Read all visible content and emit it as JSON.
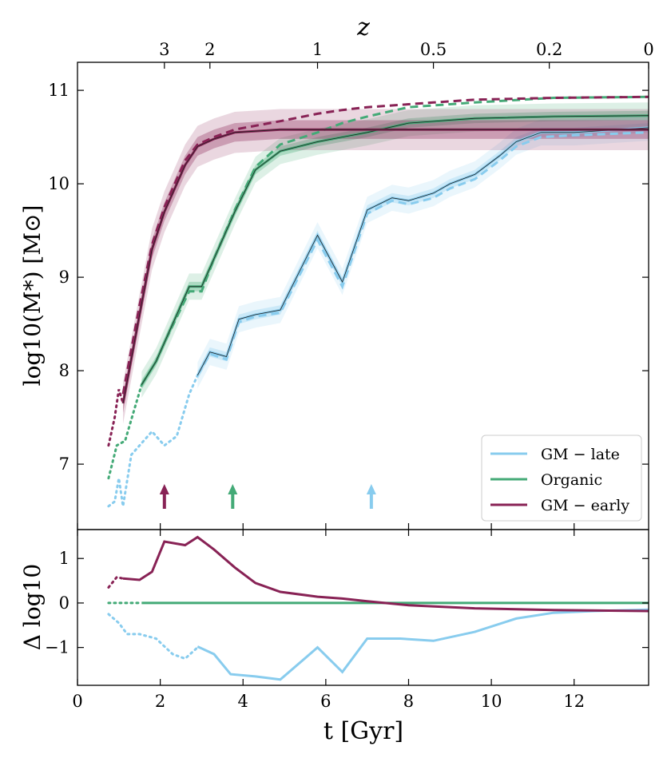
{
  "chart_data": {
    "type": "line",
    "xlabel": "t [Gyr]",
    "top_xlabel": "z",
    "ylabel_top": "log10(M*) [M⊙]",
    "ylabel_bottom": "Δ log10",
    "xlim": [
      0,
      13.8
    ],
    "ylim_top": [
      6.3,
      11.3
    ],
    "ylim_bottom": [
      -1.85,
      1.65
    ],
    "x_ticks": [
      0,
      2,
      4,
      6,
      8,
      10,
      12
    ],
    "y_ticks_top": [
      7,
      8,
      9,
      10,
      11
    ],
    "y_ticks_bottom": [
      -1,
      0,
      1
    ],
    "z_ticks": [
      {
        "label": "3",
        "t": 2.1
      },
      {
        "label": "2",
        "t": 3.2
      },
      {
        "label": "1",
        "t": 5.8
      },
      {
        "label": "0.5",
        "t": 8.6
      },
      {
        "label": "0.2",
        "t": 11.4
      },
      {
        "label": "0",
        "t": 13.8
      }
    ],
    "legend": {
      "position": "lower-right",
      "entries": [
        {
          "key": "late",
          "label": "GM − late"
        },
        {
          "key": "organic",
          "label": "Organic"
        },
        {
          "key": "early",
          "label": "GM − early"
        }
      ]
    },
    "colors": {
      "late": "#88ccee",
      "organic": "#44aa77",
      "early": "#882255"
    },
    "series": [
      {
        "key": "late",
        "name": "GM − late",
        "dotted": [
          [
            0.75,
            6.55
          ],
          [
            0.9,
            6.6
          ],
          [
            1.0,
            6.85
          ],
          [
            1.1,
            6.55
          ],
          [
            1.3,
            7.1
          ],
          [
            1.5,
            7.2
          ],
          [
            1.8,
            7.35
          ],
          [
            2.1,
            7.2
          ],
          [
            2.4,
            7.3
          ],
          [
            2.7,
            7.75
          ],
          [
            2.9,
            7.95
          ]
        ],
        "solid": [
          [
            2.9,
            7.95
          ],
          [
            3.2,
            8.2
          ],
          [
            3.6,
            8.15
          ],
          [
            3.9,
            8.55
          ],
          [
            4.3,
            8.6
          ],
          [
            4.9,
            8.65
          ],
          [
            5.8,
            9.45
          ],
          [
            6.4,
            8.95
          ],
          [
            7.0,
            9.72
          ],
          [
            7.6,
            9.85
          ],
          [
            8.0,
            9.82
          ],
          [
            8.6,
            9.9
          ],
          [
            9.0,
            10.0
          ],
          [
            9.6,
            10.1
          ],
          [
            10.2,
            10.3
          ],
          [
            10.6,
            10.45
          ],
          [
            11.2,
            10.55
          ],
          [
            12.0,
            10.55
          ],
          [
            13.8,
            10.6
          ]
        ],
        "dashed": [
          [
            2.9,
            7.95
          ],
          [
            3.2,
            8.18
          ],
          [
            3.6,
            8.12
          ],
          [
            3.9,
            8.52
          ],
          [
            4.3,
            8.58
          ],
          [
            4.9,
            8.62
          ],
          [
            5.8,
            9.4
          ],
          [
            6.4,
            8.9
          ],
          [
            7.0,
            9.68
          ],
          [
            7.6,
            9.82
          ],
          [
            8.0,
            9.78
          ],
          [
            8.6,
            9.85
          ],
          [
            9.0,
            9.95
          ],
          [
            9.6,
            10.05
          ],
          [
            10.2,
            10.25
          ],
          [
            10.6,
            10.4
          ],
          [
            11.2,
            10.5
          ],
          [
            12.0,
            10.52
          ],
          [
            13.8,
            10.55
          ]
        ],
        "delta_dotted": [
          [
            0.75,
            -0.25
          ],
          [
            1.0,
            -0.45
          ],
          [
            1.2,
            -0.7
          ],
          [
            1.5,
            -0.7
          ],
          [
            1.9,
            -0.8
          ],
          [
            2.3,
            -1.15
          ],
          [
            2.6,
            -1.25
          ],
          [
            2.9,
            -1.0
          ]
        ],
        "delta": [
          [
            2.9,
            -0.98
          ],
          [
            3.3,
            -1.15
          ],
          [
            3.7,
            -1.6
          ],
          [
            4.3,
            -1.65
          ],
          [
            4.9,
            -1.72
          ],
          [
            5.8,
            -1.0
          ],
          [
            6.4,
            -1.55
          ],
          [
            7.0,
            -0.8
          ],
          [
            7.8,
            -0.8
          ],
          [
            8.6,
            -0.85
          ],
          [
            9.6,
            -0.65
          ],
          [
            10.6,
            -0.35
          ],
          [
            11.5,
            -0.22
          ],
          [
            12.5,
            -0.18
          ],
          [
            13.8,
            -0.15
          ]
        ]
      },
      {
        "key": "organic",
        "name": "Organic",
        "dotted": [
          [
            0.75,
            6.85
          ],
          [
            0.95,
            7.2
          ],
          [
            1.15,
            7.25
          ],
          [
            1.35,
            7.55
          ],
          [
            1.55,
            7.85
          ]
        ],
        "solid": [
          [
            1.55,
            7.85
          ],
          [
            1.9,
            8.1
          ],
          [
            2.1,
            8.3
          ],
          [
            2.7,
            8.9
          ],
          [
            3.0,
            8.9
          ],
          [
            3.3,
            9.2
          ],
          [
            3.8,
            9.7
          ],
          [
            4.3,
            10.15
          ],
          [
            4.9,
            10.35
          ],
          [
            5.8,
            10.45
          ],
          [
            6.4,
            10.5
          ],
          [
            7.0,
            10.55
          ],
          [
            8.0,
            10.65
          ],
          [
            9.6,
            10.7
          ],
          [
            11.5,
            10.72
          ],
          [
            13.8,
            10.73
          ]
        ],
        "dashed": [
          [
            1.55,
            7.85
          ],
          [
            1.9,
            8.1
          ],
          [
            2.1,
            8.3
          ],
          [
            2.7,
            8.85
          ],
          [
            3.0,
            8.85
          ],
          [
            3.3,
            9.2
          ],
          [
            3.8,
            9.72
          ],
          [
            4.3,
            10.18
          ],
          [
            4.9,
            10.42
          ],
          [
            5.8,
            10.55
          ],
          [
            6.4,
            10.65
          ],
          [
            7.0,
            10.72
          ],
          [
            8.0,
            10.82
          ],
          [
            9.6,
            10.87
          ],
          [
            11.5,
            10.92
          ],
          [
            13.8,
            10.93
          ]
        ],
        "delta_dotted": [
          [
            0.75,
            0.0
          ],
          [
            1.55,
            0.0
          ]
        ],
        "delta": [
          [
            1.55,
            0.0
          ],
          [
            13.8,
            0.0
          ]
        ]
      },
      {
        "key": "early",
        "name": "GM − early",
        "dotted": [
          [
            0.75,
            7.2
          ],
          [
            0.9,
            7.5
          ],
          [
            1.0,
            7.8
          ],
          [
            1.1,
            7.65
          ]
        ],
        "solid": [
          [
            1.1,
            7.65
          ],
          [
            1.5,
            8.6
          ],
          [
            1.8,
            9.3
          ],
          [
            2.1,
            9.7
          ],
          [
            2.6,
            10.2
          ],
          [
            2.9,
            10.4
          ],
          [
            3.3,
            10.48
          ],
          [
            3.8,
            10.55
          ],
          [
            4.9,
            10.58
          ],
          [
            7.0,
            10.58
          ],
          [
            13.8,
            10.58
          ]
        ],
        "dashed": [
          [
            1.1,
            7.75
          ],
          [
            1.5,
            8.7
          ],
          [
            1.8,
            9.35
          ],
          [
            2.1,
            9.75
          ],
          [
            2.6,
            10.25
          ],
          [
            2.9,
            10.42
          ],
          [
            3.3,
            10.5
          ],
          [
            3.8,
            10.58
          ],
          [
            4.9,
            10.67
          ],
          [
            5.8,
            10.75
          ],
          [
            6.4,
            10.79
          ],
          [
            7.0,
            10.82
          ],
          [
            8.6,
            10.87
          ],
          [
            9.6,
            10.9
          ],
          [
            11.5,
            10.92
          ],
          [
            13.8,
            10.93
          ]
        ],
        "delta_dotted": [
          [
            0.75,
            0.35
          ],
          [
            0.95,
            0.58
          ],
          [
            1.1,
            0.55
          ]
        ],
        "delta": [
          [
            1.1,
            0.55
          ],
          [
            1.5,
            0.52
          ],
          [
            1.8,
            0.7
          ],
          [
            2.1,
            1.38
          ],
          [
            2.6,
            1.3
          ],
          [
            2.9,
            1.48
          ],
          [
            3.3,
            1.2
          ],
          [
            3.8,
            0.8
          ],
          [
            4.3,
            0.45
          ],
          [
            4.9,
            0.25
          ],
          [
            5.8,
            0.14
          ],
          [
            6.4,
            0.1
          ],
          [
            7.0,
            0.04
          ],
          [
            8.0,
            -0.05
          ],
          [
            9.6,
            -0.12
          ],
          [
            11.5,
            -0.16
          ],
          [
            13.8,
            -0.18
          ]
        ]
      }
    ],
    "arrows": [
      {
        "key": "early",
        "t": 2.1
      },
      {
        "key": "organic",
        "t": 3.75
      },
      {
        "key": "late",
        "t": 7.1
      }
    ]
  }
}
